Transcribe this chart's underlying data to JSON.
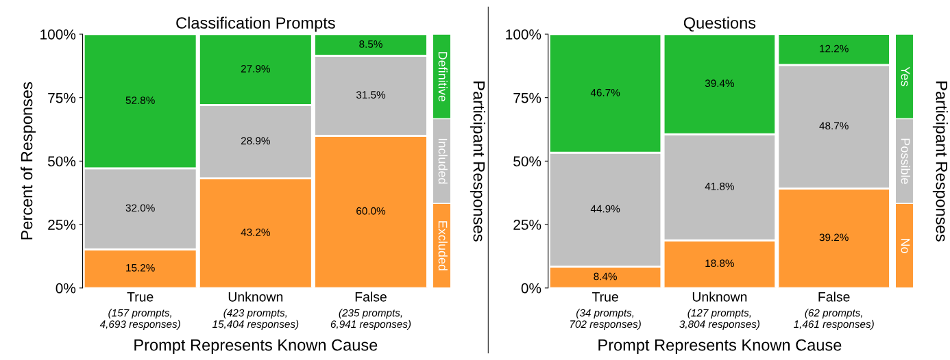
{
  "chart_data": [
    {
      "type": "bar",
      "stacked": true,
      "title": "Classification Prompts",
      "xlabel": "Prompt Represents Known Cause",
      "ylabel": "Percent of Responses",
      "legend_title": "Participant Responses",
      "legend": "right",
      "categories": [
        "True\n(157 prompts,\n4,693 responses)",
        "Unknown\n(423 prompts,\n15,404 responses)",
        "False\n(235 prompts,\n6,941 responses)"
      ],
      "ylim": [
        0,
        100
      ],
      "yticks": [
        {
          "value": 0,
          "label": "0%"
        },
        {
          "value": 25,
          "label": "25%"
        },
        {
          "value": 50,
          "label": "50%"
        },
        {
          "value": 75,
          "label": "75%"
        },
        {
          "value": 100,
          "label": "100%"
        }
      ],
      "series": [
        {
          "name": "Excluded",
          "color": "#ff9933",
          "values": [
            15.2,
            43.2,
            60.0
          ],
          "value_labels": [
            "15.2%",
            "43.2%",
            "60.0%"
          ]
        },
        {
          "name": "Included",
          "color": "#c0c0c0",
          "values": [
            32.0,
            28.9,
            31.5
          ],
          "value_labels": [
            "32.0%",
            "28.9%",
            "31.5%"
          ]
        },
        {
          "name": "Definitive",
          "color": "#22bb33",
          "values": [
            52.8,
            27.9,
            8.5
          ],
          "value_labels": [
            "52.8%",
            "27.9%",
            "8.5%"
          ]
        }
      ]
    },
    {
      "type": "bar",
      "stacked": true,
      "title": "Questions",
      "xlabel": "Prompt Represents Known Cause",
      "legend_title": "Participant Responses",
      "legend": "right",
      "categories": [
        "True\n(34 prompts,\n702 responses)",
        "Unknown\n(127 prompts,\n3,804 responses)",
        "False\n(62 prompts,\n1,461 responses)"
      ],
      "ylim": [
        0,
        100
      ],
      "yticks": [
        {
          "value": 0,
          "label": "0%"
        },
        {
          "value": 25,
          "label": "25%"
        },
        {
          "value": 50,
          "label": "50%"
        },
        {
          "value": 75,
          "label": "75%"
        },
        {
          "value": 100,
          "label": "100%"
        }
      ],
      "series": [
        {
          "name": "No",
          "color": "#ff9933",
          "values": [
            8.4,
            18.8,
            39.2
          ],
          "value_labels": [
            "8.4%",
            "18.8%",
            "39.2%"
          ]
        },
        {
          "name": "Possible",
          "color": "#c0c0c0",
          "values": [
            44.9,
            41.8,
            48.7
          ],
          "value_labels": [
            "44.9%",
            "41.8%",
            "48.7%"
          ]
        },
        {
          "name": "Yes",
          "color": "#22bb33",
          "values": [
            46.7,
            39.4,
            12.2
          ],
          "value_labels": [
            "46.7%",
            "39.4%",
            "12.2%"
          ]
        }
      ]
    }
  ]
}
